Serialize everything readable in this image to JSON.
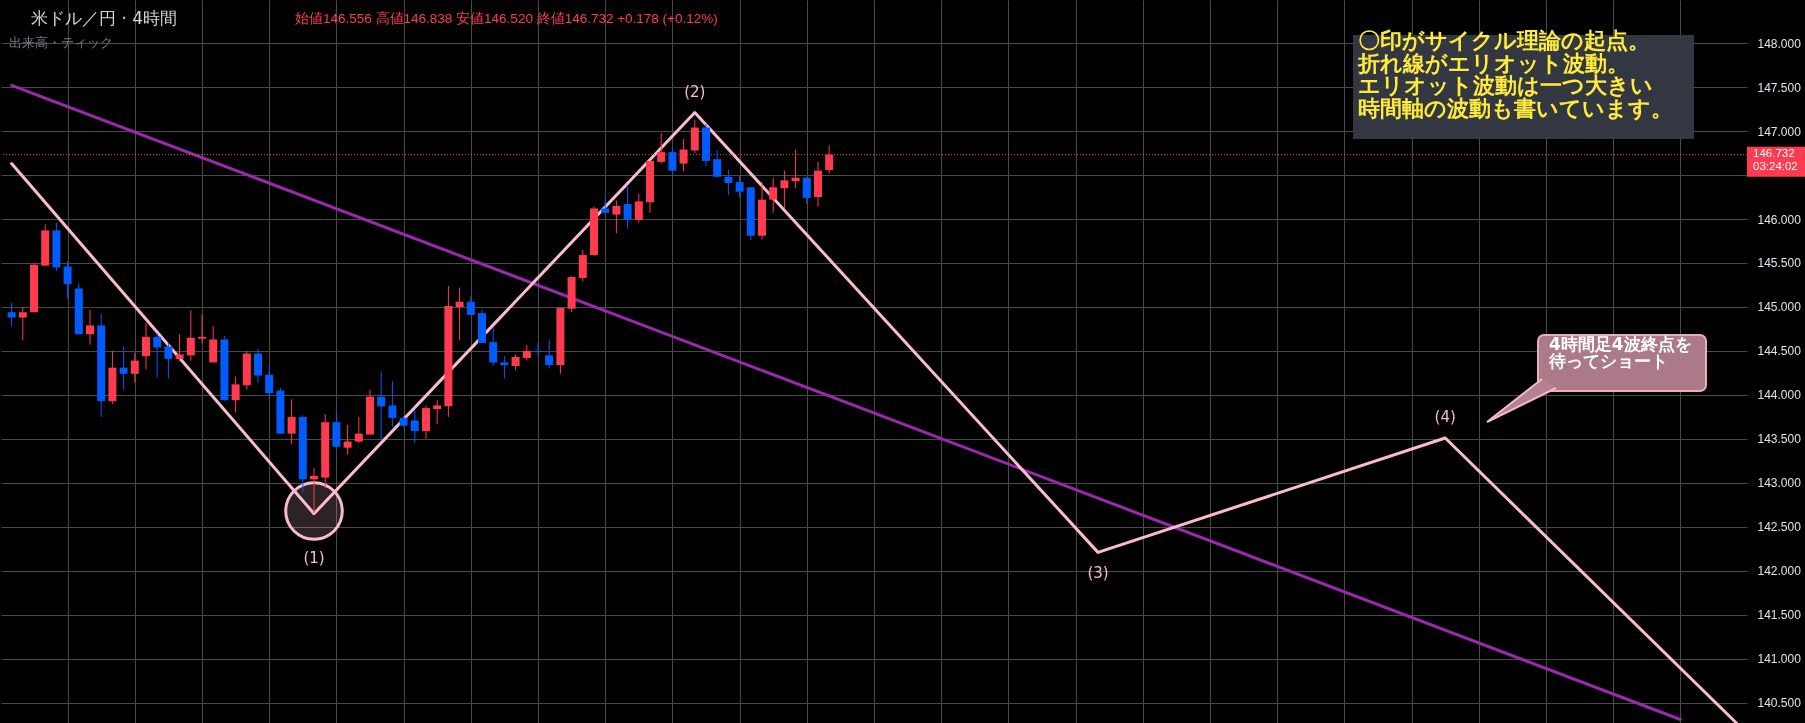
{
  "chart_data": {
    "type": "candlestick",
    "title": "米ドル／円 · 4時間",
    "subtitle": "始値146.556 高値146.838 安値146.520 終値146.732 +0.178 (+0.12%)",
    "annotations": [
      "出来高・ティック",
      "〇印がサイクル理論の起点。折れ線がエリオット波動。エリオット波動は一つ大きい時間軸の波動も書いています。",
      "4時間足4波終点を待ってショート",
      {
        "text": "(1)",
        "y": 142.65
      },
      {
        "text": "(2)",
        "y": 147.21
      },
      {
        "text": "(3)",
        "y": 142.21
      },
      {
        "text": "(4)",
        "y": 143.51
      }
    ],
    "categories": [
      null,
      null,
      null,
      null,
      null,
      null,
      null,
      null,
      null,
      null,
      null,
      null,
      null,
      null,
      null,
      null,
      null,
      null,
      null,
      null,
      null,
      null,
      null,
      null,
      null,
      null,
      null,
      null,
      null,
      null,
      null,
      null,
      null,
      null,
      null,
      null,
      null,
      null,
      null,
      null,
      null,
      null,
      null,
      null,
      null,
      null,
      null,
      null,
      null,
      null,
      null,
      null,
      null,
      null,
      null,
      null,
      null,
      null,
      null,
      null,
      null,
      null,
      null,
      null,
      null,
      null,
      null,
      null,
      null,
      null,
      null,
      null,
      null,
      null,
      null,
      null,
      null,
      null,
      null,
      null,
      null,
      null,
      null,
      null,
      null,
      null,
      null,
      null,
      null,
      null,
      null,
      null,
      null,
      null,
      null,
      null,
      null,
      null,
      null,
      null,
      null,
      null,
      null,
      null,
      null,
      null,
      null,
      null,
      null,
      null,
      null,
      null,
      null,
      null,
      null,
      null,
      null,
      null,
      null,
      null,
      null,
      null,
      null,
      null,
      null,
      null,
      null,
      null,
      null,
      null,
      null,
      null,
      null,
      null,
      null,
      null,
      null,
      null,
      null,
      null,
      null,
      null,
      null,
      null,
      null,
      null,
      null,
      null,
      null,
      null,
      null,
      null,
      null,
      null,
      null
    ],
    "ohlc": [
      [
        144.94,
        145.05,
        144.78,
        144.88
      ],
      [
        144.88,
        145.0,
        144.62,
        144.94
      ],
      [
        144.94,
        145.5,
        144.94,
        145.48
      ],
      [
        145.47,
        145.94,
        145.47,
        145.87
      ],
      [
        145.87,
        145.96,
        145.41,
        145.45
      ],
      [
        145.46,
        145.52,
        145.1,
        145.26
      ],
      [
        145.21,
        145.27,
        144.69,
        144.69
      ],
      [
        144.69,
        144.97,
        144.57,
        144.79
      ],
      [
        144.79,
        144.92,
        143.75,
        143.93
      ],
      [
        143.93,
        144.5,
        143.9,
        144.31
      ],
      [
        144.31,
        144.55,
        144.06,
        144.24
      ],
      [
        144.24,
        144.48,
        144.14,
        144.39
      ],
      [
        144.44,
        144.82,
        144.29,
        144.66
      ],
      [
        144.66,
        144.7,
        144.2,
        144.54
      ],
      [
        144.55,
        144.59,
        144.19,
        144.41
      ],
      [
        144.41,
        144.69,
        144.38,
        144.46
      ],
      [
        144.45,
        144.96,
        144.39,
        144.65
      ],
      [
        144.64,
        144.91,
        144.59,
        144.66
      ],
      [
        144.37,
        144.78,
        144.37,
        144.63
      ],
      [
        144.63,
        144.67,
        143.93,
        143.94
      ],
      [
        143.94,
        144.21,
        143.8,
        144.12
      ],
      [
        144.11,
        144.5,
        144.06,
        144.47
      ],
      [
        144.47,
        144.52,
        144.14,
        144.22
      ],
      [
        144.23,
        144.33,
        143.97,
        144.02
      ],
      [
        144.05,
        144.08,
        143.56,
        143.56
      ],
      [
        143.56,
        143.95,
        143.44,
        143.75
      ],
      [
        143.75,
        143.77,
        142.89,
        143.04
      ],
      [
        143.04,
        143.17,
        142.66,
        143.08
      ],
      [
        143.06,
        143.78,
        142.94,
        143.69
      ],
      [
        143.69,
        143.81,
        143.41,
        143.41
      ],
      [
        143.4,
        143.66,
        143.32,
        143.47
      ],
      [
        143.47,
        143.75,
        143.45,
        143.56
      ],
      [
        143.55,
        144.06,
        143.55,
        143.98
      ],
      [
        143.98,
        144.26,
        143.5,
        143.87
      ],
      [
        143.88,
        144.16,
        143.64,
        143.74
      ],
      [
        143.74,
        143.76,
        143.64,
        143.65
      ],
      [
        143.71,
        143.83,
        143.45,
        143.59
      ],
      [
        143.59,
        143.88,
        143.5,
        143.85
      ],
      [
        143.84,
        143.94,
        143.67,
        143.88
      ],
      [
        143.87,
        145.24,
        143.75,
        145.01
      ],
      [
        145.0,
        145.22,
        144.62,
        145.06
      ],
      [
        145.06,
        145.12,
        144.91,
        144.91
      ],
      [
        144.93,
        144.97,
        144.59,
        144.59
      ],
      [
        144.6,
        144.77,
        144.33,
        144.37
      ],
      [
        144.37,
        144.44,
        144.19,
        144.34
      ],
      [
        144.33,
        144.46,
        144.28,
        144.43
      ],
      [
        144.42,
        144.57,
        144.39,
        144.5
      ],
      [
        144.5,
        144.59,
        144.44,
        144.49
      ],
      [
        144.45,
        144.63,
        144.3,
        144.34
      ],
      [
        144.34,
        144.99,
        144.24,
        144.99
      ],
      [
        144.98,
        145.35,
        144.94,
        145.34
      ],
      [
        145.33,
        145.65,
        145.29,
        145.59
      ],
      [
        145.59,
        146.14,
        145.58,
        146.12
      ],
      [
        146.12,
        146.24,
        146.07,
        146.07
      ],
      [
        146.05,
        146.21,
        145.84,
        146.15
      ],
      [
        146.17,
        146.37,
        145.89,
        145.99
      ],
      [
        145.99,
        146.29,
        145.96,
        146.2
      ],
      [
        146.19,
        146.66,
        146.07,
        146.66
      ],
      [
        146.65,
        146.98,
        146.63,
        146.76
      ],
      [
        146.76,
        146.81,
        146.53,
        146.55
      ],
      [
        146.63,
        146.91,
        146.54,
        146.79
      ],
      [
        146.78,
        147.13,
        146.75,
        147.04
      ],
      [
        147.04,
        147.08,
        146.6,
        146.66
      ],
      [
        146.68,
        146.78,
        146.48,
        146.48
      ],
      [
        146.48,
        146.56,
        146.27,
        146.41
      ],
      [
        146.42,
        146.49,
        146.24,
        146.31
      ],
      [
        146.36,
        146.36,
        145.76,
        145.81
      ],
      [
        145.81,
        146.42,
        145.77,
        146.22
      ],
      [
        146.22,
        146.47,
        146.07,
        146.36
      ],
      [
        146.35,
        146.55,
        146.12,
        146.44
      ],
      [
        146.43,
        146.79,
        146.35,
        146.47
      ],
      [
        146.47,
        146.47,
        146.17,
        146.24
      ],
      [
        146.25,
        146.65,
        146.14,
        146.55
      ],
      [
        146.556,
        146.838,
        146.52,
        146.732
      ],
      null,
      null,
      null,
      null,
      null,
      null,
      null,
      null,
      null,
      null,
      null,
      null,
      null,
      null,
      null,
      null,
      null,
      null,
      null,
      null,
      null,
      null,
      null,
      null,
      null,
      null,
      null,
      null,
      null,
      null,
      null,
      null,
      null,
      null,
      null,
      null,
      null,
      null,
      null,
      null,
      null,
      null,
      null,
      null,
      null,
      null,
      null,
      null,
      null,
      null,
      null,
      null,
      null,
      null,
      null,
      null,
      null,
      null,
      null,
      null,
      null,
      null,
      null,
      null,
      null,
      null,
      null,
      null,
      null,
      null,
      null,
      null,
      null,
      null,
      null,
      null,
      null,
      null,
      null,
      null,
      null
    ],
    "colors": [
      "#005cff",
      "#ff3b50",
      "#ff3b50",
      "#ff3b50",
      "#005cff",
      "#005cff",
      "#005cff",
      "#ff3b50",
      "#005cff",
      "#ff3b50",
      "#005cff",
      "#ff3b50",
      "#ff3b50",
      "#005cff",
      "#005cff",
      "#ff3b50",
      "#ff3b50",
      "#ff3b50",
      "#ff3b50",
      "#005cff",
      "#ff3b50",
      "#ff3b50",
      "#005cff",
      "#005cff",
      "#005cff",
      "#ff3b50",
      "#005cff",
      "#ff3b50",
      "#ff3b50",
      "#005cff",
      "#ff3b50",
      "#ff3b50",
      "#ff3b50",
      "#005cff",
      "#005cff",
      "#005cff",
      "#005cff",
      "#ff3b50",
      "#ff3b50",
      "#ff3b50",
      "#ff3b50",
      "#005cff",
      "#005cff",
      "#005cff",
      "#005cff",
      "#ff3b50",
      "#ff3b50",
      "#005cff",
      "#005cff",
      "#ff3b50",
      "#ff3b50",
      "#ff3b50",
      "#ff3b50",
      "#005cff",
      "#ff3b50",
      "#005cff",
      "#ff3b50",
      "#ff3b50",
      "#ff3b50",
      "#005cff",
      "#ff3b50",
      "#ff3b50",
      "#005cff",
      "#005cff",
      "#005cff",
      "#005cff",
      "#005cff",
      "#ff3b50",
      "#ff3b50",
      "#ff3b50",
      "#ff3b50",
      "#005cff",
      "#ff3b50",
      "#ff3b50",
      null,
      null,
      null,
      null,
      null,
      null,
      null,
      null,
      null,
      null,
      null,
      null,
      null,
      null,
      null,
      null,
      null,
      null,
      null,
      null,
      null,
      null,
      null,
      null,
      null,
      null,
      null,
      null,
      null,
      null,
      null,
      null,
      null,
      null,
      null,
      null,
      null,
      null,
      null,
      null,
      null,
      null,
      null,
      null,
      null,
      null,
      null,
      null,
      null,
      null,
      null,
      null,
      null,
      null,
      null,
      null,
      null,
      null,
      null,
      null,
      null,
      null,
      null,
      null,
      null,
      null,
      null,
      null,
      null,
      null,
      null,
      null,
      null,
      null,
      null,
      null,
      null,
      null,
      null,
      null,
      null
    ],
    "series": [
      {
        "type": "line",
        "color": "#9c27b0",
        "values": [
          147.52,
          null,
          null,
          null,
          null,
          null,
          null,
          null,
          null,
          null,
          null,
          null,
          null,
          null,
          null,
          null,
          null,
          null,
          null,
          null,
          null,
          null,
          null,
          null,
          null,
          null,
          null,
          null,
          null,
          null,
          null,
          null,
          null,
          null,
          null,
          null,
          null,
          null,
          null,
          null,
          null,
          null,
          null,
          null,
          null,
          null,
          null,
          null,
          null,
          null,
          null,
          null,
          null,
          null,
          null,
          null,
          null,
          null,
          null,
          null,
          null,
          null,
          null,
          null,
          null,
          null,
          null,
          null,
          null,
          null,
          null,
          null,
          null,
          null,
          null,
          null,
          null,
          null,
          null,
          null,
          null,
          null,
          null,
          null,
          null,
          null,
          null,
          null,
          null,
          null,
          null,
          null,
          null,
          null,
          null,
          null,
          null,
          null,
          null,
          null,
          null,
          null,
          null,
          null,
          null,
          null,
          null,
          null,
          null,
          null,
          null,
          null,
          null,
          null,
          null,
          null,
          null,
          null,
          null,
          null,
          null,
          null,
          null,
          null,
          null,
          null,
          null,
          null,
          null,
          null,
          null,
          null,
          null,
          null,
          null,
          null,
          null,
          null,
          null,
          null,
          null,
          null,
          null,
          null,
          null,
          null,
          null,
          null,
          null,
          140.31,
          null,
          null,
          null,
          null,
          null
        ]
      },
      {
        "type": "line",
        "color": "#f8bbd0",
        "values": [
          146.63,
          null,
          null,
          null,
          null,
          null,
          null,
          null,
          null,
          null,
          null,
          null,
          null,
          null,
          null,
          null,
          null,
          null,
          null,
          null,
          null,
          null,
          null,
          null,
          null,
          null,
          null,
          142.65,
          null,
          null,
          null,
          null,
          null,
          null,
          null,
          null,
          null,
          null,
          null,
          null,
          null,
          null,
          null,
          null,
          null,
          null,
          null,
          null,
          null,
          null,
          null,
          null,
          null,
          null,
          null,
          null,
          null,
          null,
          null,
          null,
          null,
          147.21,
          null,
          null,
          null,
          null,
          null,
          null,
          null,
          null,
          null,
          null,
          null,
          null,
          null,
          null,
          null,
          null,
          null,
          null,
          null,
          null,
          null,
          null,
          null,
          null,
          null,
          null,
          null,
          null,
          null,
          null,
          null,
          null,
          null,
          null,
          null,
          142.21,
          null,
          null,
          null,
          null,
          null,
          null,
          null,
          null,
          null,
          null,
          null,
          null,
          null,
          null,
          null,
          null,
          null,
          null,
          null,
          null,
          null,
          null,
          null,
          null,
          null,
          null,
          null,
          null,
          null,
          null,
          143.51,
          null,
          null,
          null,
          null,
          null,
          null,
          null,
          null,
          null,
          null,
          null,
          null,
          null,
          null,
          null,
          null,
          null,
          null,
          null,
          null,
          null,
          null,
          null,
          null,
          null,
          140.27
        ]
      },
      {
        "type": "scatter",
        "marker": "circle",
        "color": "#f8bbd0",
        "values": [
          null,
          null,
          null,
          null,
          null,
          null,
          null,
          null,
          null,
          null,
          null,
          null,
          null,
          null,
          null,
          null,
          null,
          null,
          null,
          null,
          null,
          null,
          null,
          null,
          null,
          null,
          null,
          142.68,
          null,
          null,
          null,
          null,
          null,
          null,
          null,
          null,
          null,
          null,
          null,
          null,
          null,
          null,
          null,
          null,
          null,
          null,
          null,
          null,
          null,
          null,
          null,
          null,
          null,
          null,
          null,
          null,
          null,
          null,
          null,
          null,
          null,
          null,
          null,
          null,
          null,
          null,
          null,
          null,
          null,
          null,
          null,
          null,
          null,
          null,
          null,
          null,
          null,
          null,
          null,
          null,
          null,
          null,
          null,
          null,
          null,
          null,
          null,
          null,
          null,
          null,
          null,
          null,
          null,
          null,
          null,
          null,
          null,
          null,
          null,
          null,
          null,
          null,
          null,
          null,
          null,
          null,
          null,
          null,
          null,
          null,
          null,
          null,
          null,
          null,
          null,
          null,
          null,
          null,
          null,
          null,
          null,
          null,
          null,
          null,
          null,
          null,
          null,
          null,
          null,
          null,
          null,
          null,
          null,
          null,
          null,
          null,
          null,
          null,
          null,
          null,
          null,
          null,
          null,
          null,
          null,
          null,
          null,
          null,
          null,
          null,
          null,
          null,
          null,
          null,
          null
        ]
      }
    ],
    "ylim": [
      140.27,
      148.49
    ],
    "yticks": [
      {
        "value": 140.5,
        "label": "140.500"
      },
      {
        "value": 141,
        "label": "141.000"
      },
      {
        "value": 141.5,
        "label": "141.500"
      },
      {
        "value": 142,
        "label": "142.000"
      },
      {
        "value": 142.5,
        "label": "142.500"
      },
      {
        "value": 143,
        "label": "143.000"
      },
      {
        "value": 143.5,
        "label": "143.500"
      },
      {
        "value": 144,
        "label": "144.000"
      },
      {
        "value": 144.5,
        "label": "144.500"
      },
      {
        "value": 145,
        "label": "145.000"
      },
      {
        "value": 145.5,
        "label": "145.500"
      },
      {
        "value": 146,
        "label": "146.000"
      },
      {
        "value": 146.5,
        "label": null
      },
      {
        "value": 147,
        "label": "147.000"
      },
      {
        "value": 147.5,
        "label": "147.500"
      },
      {
        "value": 148,
        "label": "148.000"
      }
    ],
    "grid": true,
    "tick_labels": "y",
    "ref_lines": [
      {
        "axis": "y",
        "value": 146.732,
        "label": "146.732\n03:24:02",
        "color": "#ff3b50",
        "line_style": "dotted"
      }
    ]
  }
}
